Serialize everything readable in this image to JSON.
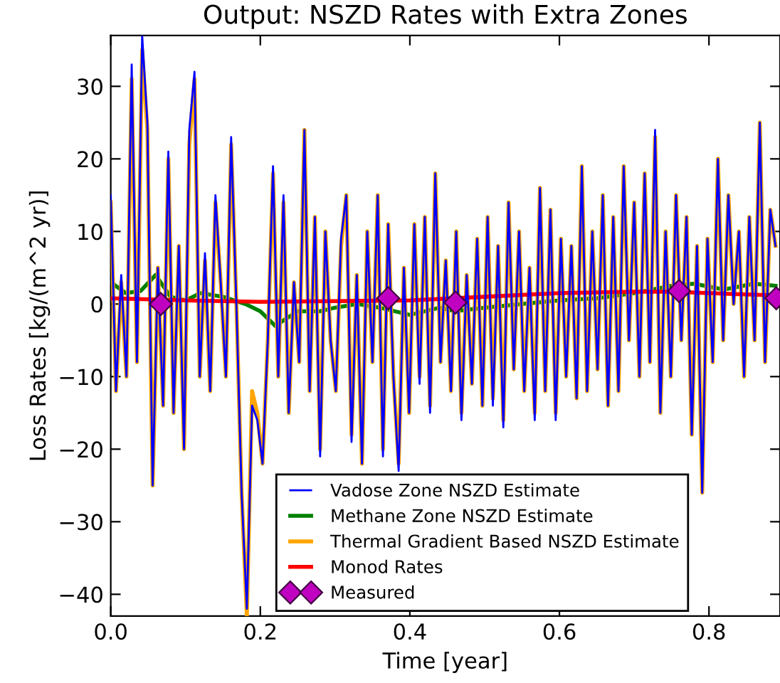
{
  "chart_data": {
    "type": "line",
    "title": "Output: NSZD Rates with Extra Zones",
    "xlabel": "Time [year]",
    "ylabel": "Loss Rates [kg/(m^2 yr)]",
    "x": [
      0,
      0.007,
      0.014,
      0.021,
      0.028,
      0.035,
      0.042,
      0.049,
      0.056,
      0.063,
      0.07,
      0.077,
      0.084,
      0.091,
      0.098,
      0.105,
      0.112,
      0.119,
      0.126,
      0.133,
      0.14,
      0.147,
      0.154,
      0.161,
      0.168,
      0.175,
      0.182,
      0.189,
      0.196,
      0.203,
      0.21,
      0.217,
      0.224,
      0.231,
      0.238,
      0.245,
      0.252,
      0.259,
      0.266,
      0.273,
      0.28,
      0.287,
      0.294,
      0.301,
      0.308,
      0.315,
      0.322,
      0.329,
      0.336,
      0.343,
      0.35,
      0.357,
      0.364,
      0.371,
      0.378,
      0.385,
      0.392,
      0.399,
      0.406,
      0.413,
      0.42,
      0.427,
      0.434,
      0.441,
      0.448,
      0.455,
      0.462,
      0.469,
      0.476,
      0.483,
      0.49,
      0.497,
      0.504,
      0.511,
      0.518,
      0.525,
      0.532,
      0.539,
      0.546,
      0.553,
      0.56,
      0.567,
      0.574,
      0.581,
      0.588,
      0.595,
      0.602,
      0.609,
      0.616,
      0.623,
      0.63,
      0.637,
      0.644,
      0.651,
      0.658,
      0.665,
      0.672,
      0.679,
      0.686,
      0.693,
      0.7,
      0.707,
      0.714,
      0.721,
      0.728,
      0.735,
      0.742,
      0.749,
      0.756,
      0.763,
      0.77,
      0.777,
      0.784,
      0.791,
      0.798,
      0.805,
      0.812,
      0.819,
      0.826,
      0.833,
      0.84,
      0.847,
      0.854,
      0.861,
      0.868,
      0.875,
      0.882,
      0.889
    ],
    "series": [
      {
        "name": "Vadose Zone NSZD Estimate",
        "color": "#0000ff",
        "values": [
          15,
          -12,
          4,
          -10,
          33,
          -8,
          37,
          25,
          -25,
          5,
          -14,
          21,
          -15,
          8,
          -20,
          24,
          32,
          -10,
          7,
          -12,
          15,
          3,
          -10,
          23,
          0,
          -26,
          -42,
          -14,
          -16,
          -22,
          -5,
          19,
          -10,
          15,
          -15,
          3,
          -8,
          24,
          -12,
          12,
          -21,
          10,
          -5,
          -12,
          9,
          15,
          -19,
          4,
          -22,
          10,
          -8,
          15,
          -21,
          11,
          -10,
          -23,
          5,
          -15,
          11,
          -11,
          12,
          -15,
          18,
          -8,
          6,
          -12,
          10,
          -16,
          4,
          -11,
          9,
          -14,
          12,
          -14,
          8,
          -17,
          14,
          -9,
          10,
          -12,
          5,
          -16,
          16,
          -12,
          13,
          -16,
          9,
          -10,
          8,
          -13,
          19,
          -12,
          10,
          -9,
          15,
          -14,
          12,
          -12,
          19,
          -5,
          14,
          -10,
          18,
          -8,
          24,
          -15,
          10,
          -10,
          15,
          -5,
          12,
          -18,
          8,
          -26,
          9,
          -8,
          20,
          -5,
          15,
          0,
          10,
          -10,
          12,
          -5,
          25,
          -8,
          13,
          8
        ]
      },
      {
        "name": "Methane Zone NSZD Estimate",
        "color": "#008000",
        "x": [
          0,
          0.02,
          0.04,
          0.06,
          0.08,
          0.1,
          0.12,
          0.15,
          0.18,
          0.2,
          0.22,
          0.25,
          0.28,
          0.3,
          0.33,
          0.36,
          0.4,
          0.44,
          0.46,
          0.5,
          0.55,
          0.6,
          0.65,
          0.7,
          0.75,
          0.78,
          0.82,
          0.86,
          0.889
        ],
        "values": [
          3,
          1.5,
          1.8,
          4,
          1,
          0.5,
          1.5,
          1,
          0,
          -1,
          -3,
          -1,
          -1,
          -0.5,
          0,
          -0.5,
          -1.5,
          -0.5,
          -1,
          -0.5,
          0,
          0.5,
          0.8,
          1.5,
          2.5,
          2.8,
          2,
          2.8,
          2.5
        ]
      },
      {
        "name": "Thermal Gradient Based NSZD Estimate",
        "color": "#ffa500",
        "values": [
          14,
          -12,
          3,
          -10,
          31,
          -8,
          35,
          24,
          -25,
          5,
          -14,
          20,
          -15,
          8,
          -20,
          22,
          31,
          -10,
          6,
          -12,
          14,
          3,
          -10,
          22,
          0,
          -26,
          -43,
          -12,
          -15,
          -22,
          -5,
          18,
          -10,
          14,
          -15,
          3,
          -8,
          24,
          -12,
          12,
          -20,
          10,
          -5,
          -12,
          8,
          15,
          -18,
          4,
          -22,
          10,
          -8,
          15,
          -20,
          11,
          -10,
          -22,
          5,
          -15,
          11,
          -10,
          12,
          -14,
          18,
          -8,
          6,
          -12,
          10,
          -15,
          4,
          -11,
          9,
          -14,
          12,
          -13,
          8,
          -16,
          14,
          -9,
          10,
          -12,
          5,
          -15,
          16,
          -12,
          13,
          -15,
          9,
          -10,
          8,
          -13,
          19,
          -12,
          10,
          -9,
          15,
          -14,
          12,
          -12,
          19,
          -5,
          14,
          -10,
          18,
          -8,
          23,
          -15,
          10,
          -10,
          15,
          -5,
          12,
          -18,
          8,
          -26,
          9,
          -8,
          20,
          -5,
          15,
          0,
          10,
          -10,
          12,
          -5,
          25,
          -8,
          13,
          8
        ]
      },
      {
        "name": "Monod Rates",
        "color": "#ff0000",
        "x": [
          0,
          0.1,
          0.2,
          0.3,
          0.4,
          0.5,
          0.6,
          0.7,
          0.75,
          0.8,
          0.889
        ],
        "values": [
          0.8,
          0.5,
          0.3,
          0.4,
          0.5,
          1.0,
          1.5,
          1.7,
          1.7,
          1.5,
          1.2
        ]
      },
      {
        "name": "Measured",
        "type": "scatter",
        "marker": "diamond",
        "color": "#c000c0",
        "x": [
          0.067,
          0.371,
          0.461,
          0.76,
          0.89
        ],
        "values": [
          0,
          0.8,
          0.2,
          1.8,
          0.8
        ]
      }
    ],
    "xlim": [
      0,
      0.895
    ],
    "ylim": [
      -43,
      37
    ],
    "xticks": [
      {
        "value": 0,
        "label": "0.0"
      },
      {
        "value": 0.2,
        "label": "0.2"
      },
      {
        "value": 0.4,
        "label": "0.4"
      },
      {
        "value": 0.6,
        "label": "0.6"
      },
      {
        "value": 0.8,
        "label": "0.8"
      }
    ],
    "yticks": [
      {
        "value": -40,
        "label": "−40"
      },
      {
        "value": -30,
        "label": "−30"
      },
      {
        "value": -20,
        "label": "−20"
      },
      {
        "value": -10,
        "label": "−10"
      },
      0,
      10,
      20,
      30
    ],
    "legend": "bottom",
    "marker": "none",
    "line_style": "solid"
  }
}
